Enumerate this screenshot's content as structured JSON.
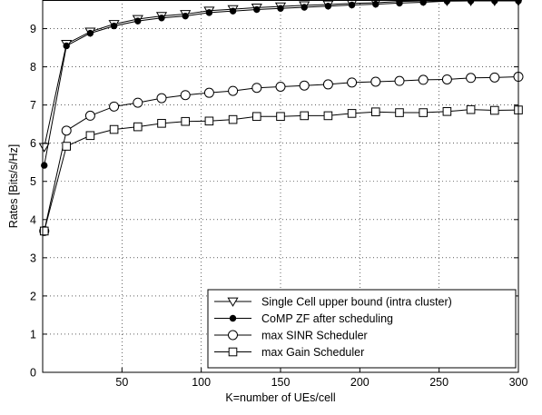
{
  "chart_data": {
    "type": "line",
    "title": "",
    "xlabel": "K=number of UEs/cell",
    "ylabel": "Rates [Bits/s/Hz]",
    "xlim": [
      0,
      300
    ],
    "ylim": [
      0,
      9.75
    ],
    "x_ticks": [
      50,
      100,
      150,
      200,
      250,
      300
    ],
    "y_ticks": [
      0,
      1,
      2,
      3,
      4,
      5,
      6,
      7,
      8,
      9
    ],
    "grid": true,
    "legend_position": "bottom-right",
    "x": [
      1,
      15,
      30,
      45,
      60,
      75,
      90,
      105,
      120,
      135,
      150,
      165,
      180,
      195,
      210,
      225,
      240,
      255,
      270,
      285,
      300
    ],
    "series": [
      {
        "name": "Single Cell upper bound (intra cluster)",
        "marker": "triangle-down",
        "values": [
          5.9,
          8.6,
          8.92,
          9.12,
          9.25,
          9.33,
          9.38,
          9.47,
          9.51,
          9.55,
          9.58,
          9.61,
          9.63,
          9.66,
          9.68,
          9.71,
          9.73,
          9.76,
          9.78,
          9.8,
          9.82
        ]
      },
      {
        "name": "CoMP ZF after scheduling",
        "marker": "filled-circle",
        "values": [
          5.42,
          8.55,
          8.88,
          9.07,
          9.2,
          9.28,
          9.33,
          9.42,
          9.46,
          9.5,
          9.53,
          9.56,
          9.59,
          9.62,
          9.64,
          9.67,
          9.69,
          9.72,
          9.74,
          9.76,
          9.78
        ]
      },
      {
        "name": "max SINR Scheduler",
        "marker": "open-circle",
        "values": [
          3.7,
          6.33,
          6.72,
          6.96,
          7.06,
          7.18,
          7.26,
          7.32,
          7.37,
          7.45,
          7.48,
          7.51,
          7.54,
          7.59,
          7.61,
          7.63,
          7.66,
          7.67,
          7.71,
          7.72,
          7.74
        ]
      },
      {
        "name": "max Gain Scheduler",
        "marker": "open-square",
        "values": [
          3.7,
          5.92,
          6.2,
          6.36,
          6.43,
          6.52,
          6.57,
          6.58,
          6.62,
          6.7,
          6.7,
          6.72,
          6.72,
          6.78,
          6.82,
          6.8,
          6.8,
          6.83,
          6.88,
          6.86,
          6.87
        ]
      }
    ]
  }
}
